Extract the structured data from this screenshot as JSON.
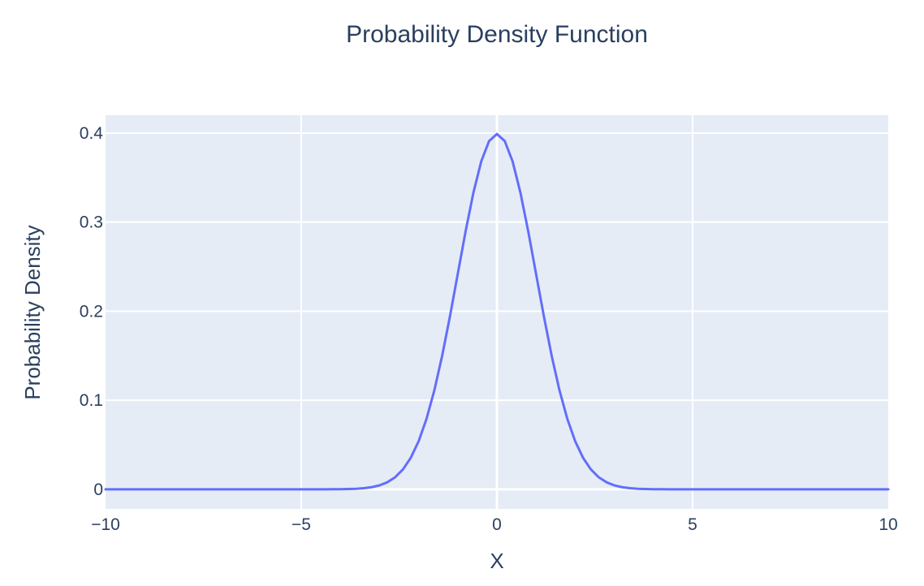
{
  "chart_data": {
    "type": "line",
    "title": "Probability Density Function",
    "xlabel": "X",
    "ylabel": "Probability Density",
    "xlim": [
      -10,
      10
    ],
    "ylim": [
      -0.022,
      0.42
    ],
    "grid": true,
    "x_ticks": [
      -10,
      -5,
      0,
      5,
      10
    ],
    "x_tick_labels": [
      "−10",
      "−5",
      "0",
      "5",
      "10"
    ],
    "y_ticks": [
      0,
      0.1,
      0.2,
      0.3,
      0.4
    ],
    "y_tick_labels": [
      "0",
      "0.1",
      "0.2",
      "0.3",
      "0.4"
    ],
    "series": [
      {
        "distribution": "normal",
        "mean": 0,
        "std": 1,
        "x_range": [
          -10,
          10
        ],
        "points": 101
      }
    ]
  },
  "colors": {
    "plot_background": "#e5ecf6",
    "grid": "#ffffff",
    "line": "#636efa",
    "text": "#2a3f5f"
  }
}
